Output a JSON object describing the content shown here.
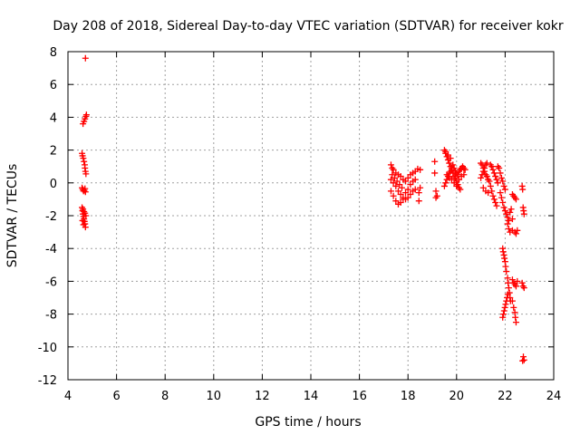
{
  "chart_data": {
    "type": "scatter",
    "title": "Day 208 of 2018, Sidereal Day-to-day VTEC variation (SDTVAR) for receiver kokr",
    "xlabel": "GPS time / hours",
    "ylabel": "SDTVAR / TECUs",
    "xlim": [
      4,
      24
    ],
    "ylim": [
      -12,
      8
    ],
    "xticks": [
      4,
      6,
      8,
      10,
      12,
      14,
      16,
      18,
      20,
      22,
      24
    ],
    "yticks": [
      -12,
      -10,
      -8,
      -6,
      -4,
      -2,
      0,
      2,
      4,
      6,
      8
    ],
    "grid": true,
    "marker": "+",
    "series": [
      {
        "name": "SDTVAR",
        "color": "#ff0000",
        "points": [
          [
            4.72,
            7.6
          ],
          [
            4.62,
            3.6
          ],
          [
            4.66,
            3.75
          ],
          [
            4.7,
            3.9
          ],
          [
            4.74,
            4.05
          ],
          [
            4.76,
            4.15
          ],
          [
            4.58,
            1.8
          ],
          [
            4.6,
            1.65
          ],
          [
            4.63,
            1.5
          ],
          [
            4.66,
            1.3
          ],
          [
            4.69,
            1.1
          ],
          [
            4.7,
            0.9
          ],
          [
            4.72,
            0.7
          ],
          [
            4.74,
            0.55
          ],
          [
            4.58,
            -0.3
          ],
          [
            4.61,
            -0.4
          ],
          [
            4.64,
            -0.5
          ],
          [
            4.67,
            -0.45
          ],
          [
            4.7,
            -0.35
          ],
          [
            4.72,
            -0.55
          ],
          [
            4.58,
            -1.5
          ],
          [
            4.6,
            -1.7
          ],
          [
            4.62,
            -1.9
          ],
          [
            4.64,
            -2.05
          ],
          [
            4.66,
            -2.2
          ],
          [
            4.68,
            -2.35
          ],
          [
            4.7,
            -2.5
          ],
          [
            4.72,
            -2.7
          ],
          [
            4.62,
            -1.6
          ],
          [
            4.66,
            -1.75
          ],
          [
            4.7,
            -1.85
          ],
          [
            4.74,
            -2.0
          ],
          [
            4.6,
            -2.3
          ],
          [
            4.64,
            -2.55
          ],
          [
            17.3,
            1.1
          ],
          [
            17.35,
            0.9
          ],
          [
            17.4,
            0.8
          ],
          [
            17.5,
            0.6
          ],
          [
            17.6,
            0.5
          ],
          [
            17.7,
            0.4
          ],
          [
            17.8,
            0.2
          ],
          [
            17.9,
            0.1
          ],
          [
            18.0,
            0.3
          ],
          [
            18.1,
            0.5
          ],
          [
            18.2,
            0.6
          ],
          [
            18.3,
            0.7
          ],
          [
            18.4,
            0.85
          ],
          [
            17.3,
            0.2
          ],
          [
            17.4,
            0.0
          ],
          [
            17.5,
            -0.2
          ],
          [
            17.6,
            -0.5
          ],
          [
            17.7,
            -0.7
          ],
          [
            17.8,
            -0.9
          ],
          [
            17.9,
            -1.0
          ],
          [
            18.0,
            -0.9
          ],
          [
            18.1,
            -0.7
          ],
          [
            18.2,
            -0.5
          ],
          [
            18.3,
            -0.4
          ],
          [
            17.3,
            -0.5
          ],
          [
            17.4,
            -0.8
          ],
          [
            17.5,
            -1.1
          ],
          [
            17.6,
            -1.3
          ],
          [
            17.7,
            -1.2
          ],
          [
            17.8,
            -1.0
          ],
          [
            17.9,
            -0.6
          ],
          [
            18.0,
            -0.4
          ],
          [
            18.1,
            -0.1
          ],
          [
            18.2,
            0.1
          ],
          [
            18.3,
            0.2
          ],
          [
            17.35,
            0.5
          ],
          [
            17.45,
            0.3
          ],
          [
            17.55,
            0.1
          ],
          [
            17.65,
            -0.1
          ],
          [
            17.75,
            -0.3
          ],
          [
            18.45,
            -0.6
          ],
          [
            18.45,
            -1.1
          ],
          [
            18.5,
            -0.3
          ],
          [
            18.5,
            0.8
          ],
          [
            19.1,
            1.3
          ],
          [
            19.1,
            0.6
          ],
          [
            19.15,
            -0.5
          ],
          [
            19.15,
            -0.9
          ],
          [
            19.2,
            -0.8
          ],
          [
            19.5,
            2.0
          ],
          [
            19.55,
            1.8
          ],
          [
            19.6,
            1.6
          ],
          [
            19.65,
            1.4
          ],
          [
            19.7,
            1.2
          ],
          [
            19.75,
            1.0
          ],
          [
            19.8,
            0.8
          ],
          [
            19.85,
            0.6
          ],
          [
            19.9,
            0.4
          ],
          [
            19.95,
            0.3
          ],
          [
            20.0,
            0.1
          ],
          [
            20.05,
            -0.1
          ],
          [
            20.1,
            -0.3
          ],
          [
            20.15,
            -0.4
          ],
          [
            19.5,
            -0.2
          ],
          [
            19.55,
            0.0
          ],
          [
            19.6,
            0.2
          ],
          [
            19.65,
            0.4
          ],
          [
            19.7,
            0.6
          ],
          [
            19.75,
            0.7
          ],
          [
            19.8,
            0.9
          ],
          [
            19.85,
            1.1
          ],
          [
            19.9,
            0.9
          ],
          [
            19.95,
            0.7
          ],
          [
            20.0,
            0.6
          ],
          [
            20.05,
            0.5
          ],
          [
            20.1,
            0.7
          ],
          [
            20.15,
            0.8
          ],
          [
            20.2,
            0.9
          ],
          [
            20.25,
            1.0
          ],
          [
            20.3,
            0.9
          ],
          [
            20.35,
            0.8
          ],
          [
            19.6,
            0.5
          ],
          [
            19.7,
            0.3
          ],
          [
            19.8,
            0.2
          ],
          [
            19.9,
            0.0
          ],
          [
            20.0,
            -0.2
          ],
          [
            20.1,
            0.2
          ],
          [
            20.2,
            0.4
          ],
          [
            20.3,
            0.5
          ],
          [
            19.55,
            1.9
          ],
          [
            19.65,
            1.7
          ],
          [
            19.75,
            1.5
          ],
          [
            21.0,
            1.2
          ],
          [
            21.05,
            1.1
          ],
          [
            21.1,
            0.9
          ],
          [
            21.15,
            0.7
          ],
          [
            21.2,
            0.5
          ],
          [
            21.25,
            0.4
          ],
          [
            21.3,
            0.2
          ],
          [
            21.35,
            0.1
          ],
          [
            21.0,
            0.3
          ],
          [
            21.05,
            0.5
          ],
          [
            21.1,
            0.7
          ],
          [
            21.15,
            0.9
          ],
          [
            21.2,
            1.1
          ],
          [
            21.25,
            1.2
          ],
          [
            21.1,
            -0.3
          ],
          [
            21.2,
            -0.5
          ],
          [
            21.3,
            -0.6
          ],
          [
            21.4,
            1.1
          ],
          [
            21.45,
            1.0
          ],
          [
            21.5,
            0.8
          ],
          [
            21.55,
            0.6
          ],
          [
            21.6,
            0.4
          ],
          [
            21.65,
            0.2
          ],
          [
            21.7,
            0.0
          ],
          [
            21.4,
            -0.2
          ],
          [
            21.45,
            -0.5
          ],
          [
            21.5,
            -0.8
          ],
          [
            21.55,
            -1.0
          ],
          [
            21.6,
            -1.2
          ],
          [
            21.65,
            -1.4
          ],
          [
            21.7,
            1.0
          ],
          [
            21.75,
            0.9
          ],
          [
            21.8,
            0.6
          ],
          [
            21.85,
            0.3
          ],
          [
            21.9,
            0.1
          ],
          [
            21.95,
            -0.2
          ],
          [
            22.0,
            -0.4
          ],
          [
            21.8,
            -0.6
          ],
          [
            21.85,
            -0.9
          ],
          [
            21.9,
            -1.2
          ],
          [
            21.95,
            -1.5
          ],
          [
            22.0,
            -1.7
          ],
          [
            22.05,
            -1.9
          ],
          [
            22.1,
            -2.1
          ],
          [
            22.15,
            -2.3
          ],
          [
            22.1,
            -2.5
          ],
          [
            22.15,
            -2.8
          ],
          [
            22.2,
            -3.0
          ],
          [
            22.2,
            -1.8
          ],
          [
            22.25,
            -1.6
          ],
          [
            22.3,
            -2.2
          ],
          [
            21.9,
            -4.0
          ],
          [
            21.92,
            -4.2
          ],
          [
            21.95,
            -4.4
          ],
          [
            21.97,
            -4.6
          ],
          [
            22.0,
            -4.8
          ],
          [
            22.02,
            -5.1
          ],
          [
            22.05,
            -5.4
          ],
          [
            22.1,
            -5.8
          ],
          [
            22.12,
            -6.1
          ],
          [
            22.15,
            -6.4
          ],
          [
            22.18,
            -6.7
          ],
          [
            22.2,
            -7.0
          ],
          [
            22.22,
            -7.2
          ],
          [
            21.9,
            -8.2
          ],
          [
            21.93,
            -8.0
          ],
          [
            21.96,
            -7.8
          ],
          [
            21.99,
            -7.6
          ],
          [
            22.02,
            -7.4
          ],
          [
            22.05,
            -7.2
          ],
          [
            22.08,
            -7.0
          ],
          [
            22.11,
            -6.8
          ],
          [
            22.3,
            -2.9
          ],
          [
            22.4,
            -3.0
          ],
          [
            22.45,
            -3.1
          ],
          [
            22.5,
            -2.9
          ],
          [
            22.3,
            -5.9
          ],
          [
            22.35,
            -6.1
          ],
          [
            22.4,
            -6.2
          ],
          [
            22.45,
            -6.3
          ],
          [
            22.5,
            -6.0
          ],
          [
            22.3,
            -7.2
          ],
          [
            22.35,
            -7.6
          ],
          [
            22.4,
            -7.9
          ],
          [
            22.42,
            -8.2
          ],
          [
            22.45,
            -8.5
          ],
          [
            22.3,
            -0.7
          ],
          [
            22.35,
            -0.8
          ],
          [
            22.4,
            -0.9
          ],
          [
            22.45,
            -1.0
          ],
          [
            22.7,
            -0.2
          ],
          [
            22.72,
            -0.4
          ],
          [
            22.74,
            -1.5
          ],
          [
            22.76,
            -1.7
          ],
          [
            22.78,
            -1.9
          ],
          [
            22.7,
            -6.1
          ],
          [
            22.74,
            -6.3
          ],
          [
            22.78,
            -6.4
          ],
          [
            22.75,
            -10.6
          ],
          [
            22.78,
            -10.8
          ],
          [
            22.72,
            -10.85
          ]
        ]
      }
    ]
  }
}
